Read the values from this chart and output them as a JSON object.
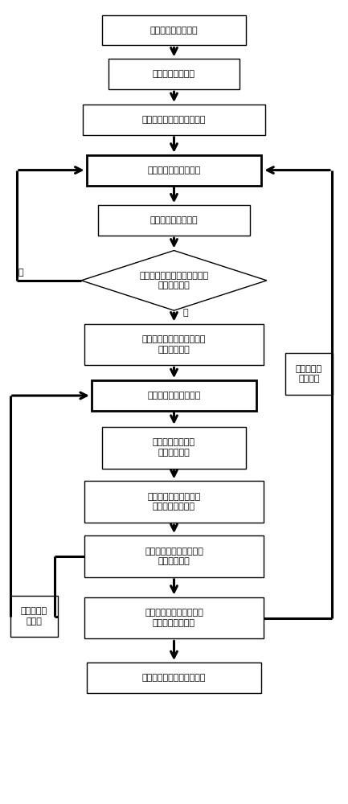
{
  "bg_color": "#ffffff",
  "nodes": [
    {
      "id": "b1",
      "text": "装订遥测数据帧信息",
      "single_line": true
    },
    {
      "id": "b2",
      "text": "装订遥测参数信息",
      "single_line": true
    },
    {
      "id": "b3",
      "text": "计算一帧遥测原码数据长度",
      "single_line": true
    },
    {
      "id": "b4",
      "text": "提取一帧遥测原码数据",
      "single_line": true,
      "thick": true
    },
    {
      "id": "b5",
      "text": "提取副帧同步码数据",
      "single_line": true
    },
    {
      "id": "d1",
      "text": "副帧同步码数据与副帧同步码\n比较是否一致",
      "diamond": true
    },
    {
      "id": "b6",
      "text": "提取遥测时间原码并转换成\n遥测时间结果",
      "single_line": false
    },
    {
      "id": "b7",
      "text": "提取一个遥测参数信息",
      "single_line": true,
      "thick": true
    },
    {
      "id": "b8",
      "text": "提取对应遥测波道\n号的原码数据",
      "single_line": false
    },
    {
      "id": "b9",
      "text": "根据原码提取公式计算\n遥测参数原码数据",
      "single_line": false
    },
    {
      "id": "b10",
      "text": "根据结果计算公式处理参\n数物理量结果",
      "single_line": false
    },
    {
      "id": "b11",
      "text": "处理完一帧遥测原码数据\n里的所有遥测参数",
      "single_line": false
    },
    {
      "id": "b12",
      "text": "处理完所有遥测帧原码数据",
      "single_line": true
    },
    {
      "id": "s1",
      "text": "处理下一参\n数数据",
      "single_line": false
    },
    {
      "id": "s2",
      "text": "处理下一遥\n测帧数据",
      "single_line": false
    }
  ],
  "label_shi": "是",
  "label_fou": "否"
}
